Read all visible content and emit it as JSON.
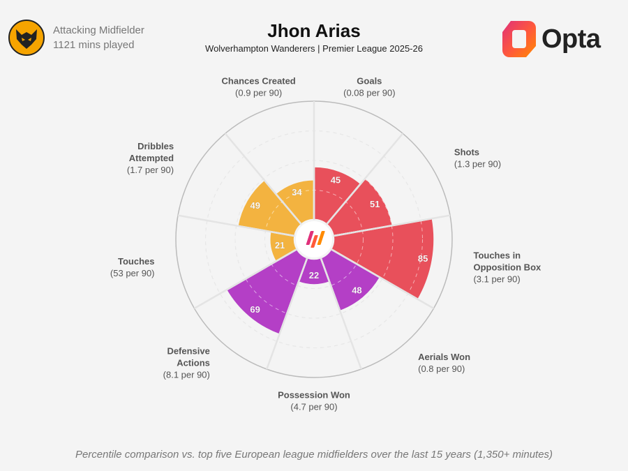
{
  "player": {
    "name": "Jhon Arias",
    "team_competition": "Wolverhampton Wanderers | Premier League 2025-26",
    "position": "Attacking Midfielder",
    "minutes": "1121 mins played"
  },
  "brand": {
    "name": "Opta"
  },
  "footnote": "Percentile comparison vs. top five European league midfielders over the last 15 years (1,350+ minutes)",
  "colors": {
    "attacking": "#e8505b",
    "possession": "#f3b340",
    "defending": "#b43fc6",
    "background": "#f4f4f4"
  },
  "chart_data": {
    "type": "pie",
    "subtype": "polar-area / pizza",
    "scale": [
      0,
      100
    ],
    "metrics": [
      {
        "name_lines": [
          "Goals"
        ],
        "value_text": "(0.08 per 90)",
        "percentile": 45,
        "group": "attacking"
      },
      {
        "name_lines": [
          "Shots"
        ],
        "value_text": "(1.3 per 90)",
        "percentile": 51,
        "group": "attacking"
      },
      {
        "name_lines": [
          "Touches in",
          "Opposition Box"
        ],
        "value_text": "(3.1 per 90)",
        "percentile": 85,
        "group": "attacking"
      },
      {
        "name_lines": [
          "Aerials Won"
        ],
        "value_text": "(0.8 per 90)",
        "percentile": 48,
        "group": "defending"
      },
      {
        "name_lines": [
          "Possession Won"
        ],
        "value_text": "(4.7 per 90)",
        "percentile": 22,
        "group": "defending"
      },
      {
        "name_lines": [
          "Defensive",
          "Actions"
        ],
        "value_text": "(8.1 per 90)",
        "percentile": 69,
        "group": "defending"
      },
      {
        "name_lines": [
          "Touches"
        ],
        "value_text": "(53 per 90)",
        "percentile": 21,
        "group": "possession"
      },
      {
        "name_lines": [
          "Dribbles",
          "Attempted"
        ],
        "value_text": "(1.7 per 90)",
        "percentile": 49,
        "group": "possession"
      },
      {
        "name_lines": [
          "Chances Created"
        ],
        "value_text": "(0.9 per 90)",
        "percentile": 34,
        "group": "possession"
      }
    ]
  }
}
